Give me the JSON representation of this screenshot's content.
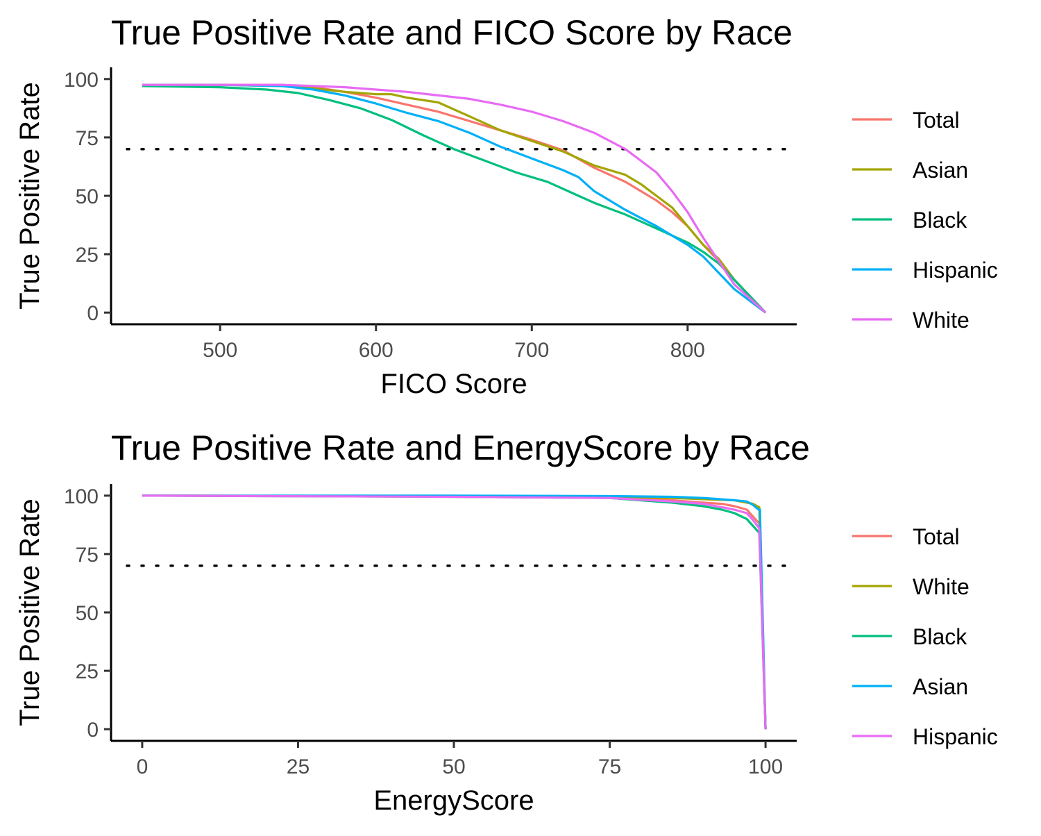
{
  "chart_data": [
    {
      "type": "line",
      "title": "True Positive Rate and FICO Score by Race",
      "xlabel": "FICO Score",
      "ylabel": "True Positive Rate",
      "xlim": [
        430,
        870
      ],
      "ylim": [
        -5,
        105
      ],
      "xticks": [
        500,
        600,
        700,
        800
      ],
      "yticks": [
        0,
        25,
        50,
        75,
        100
      ],
      "xtick_labels": [
        "500",
        "600",
        "700",
        "800"
      ],
      "ytick_labels": [
        "0",
        "25",
        "50",
        "75",
        "100"
      ],
      "reference_line": {
        "y": 70,
        "style": "dotted"
      },
      "legend": "right",
      "grid": false,
      "series": [
        {
          "name": "Total",
          "color": "#F8766D",
          "x": [
            450,
            500,
            540,
            560,
            580,
            600,
            620,
            640,
            660,
            680,
            700,
            720,
            740,
            760,
            780,
            790,
            800,
            810,
            820,
            830,
            840,
            850
          ],
          "y": [
            97.5,
            97.5,
            97.5,
            96.5,
            94.5,
            92,
            89,
            86,
            82,
            78,
            74,
            69.5,
            62,
            56,
            48,
            43,
            37,
            29,
            22,
            14,
            7,
            0
          ]
        },
        {
          "name": "Asian",
          "color": "#A3A500",
          "x": [
            450,
            500,
            540,
            560,
            580,
            600,
            610,
            620,
            640,
            660,
            680,
            700,
            720,
            740,
            760,
            770,
            780,
            790,
            800,
            810,
            820,
            830,
            840,
            850
          ],
          "y": [
            97.5,
            97.5,
            97,
            96,
            94.5,
            93.5,
            93.5,
            92,
            90,
            84,
            78,
            73.5,
            69,
            63,
            59,
            55,
            50,
            45,
            37,
            29,
            23,
            14,
            7,
            0
          ]
        },
        {
          "name": "Black",
          "color": "#00BF7D",
          "x": [
            450,
            500,
            530,
            550,
            570,
            590,
            610,
            630,
            650,
            670,
            690,
            710,
            730,
            740,
            760,
            780,
            800,
            810,
            820,
            830,
            840,
            850
          ],
          "y": [
            97,
            96.5,
            95.5,
            94,
            91,
            87.5,
            82.5,
            76,
            70,
            65,
            60,
            56,
            50,
            47,
            42,
            36,
            30,
            26,
            21,
            14,
            7,
            0
          ]
        },
        {
          "name": "Hispanic",
          "color": "#00B0F6",
          "x": [
            450,
            500,
            540,
            560,
            580,
            600,
            620,
            640,
            660,
            680,
            700,
            720,
            730,
            740,
            760,
            780,
            790,
            800,
            810,
            820,
            830,
            840,
            850
          ],
          "y": [
            97.5,
            97.5,
            97,
            95.5,
            93,
            89.5,
            85.5,
            82,
            77,
            71,
            66,
            61,
            58,
            52,
            44,
            37,
            33,
            29,
            24,
            17,
            10,
            5,
            0
          ]
        },
        {
          "name": "White",
          "color": "#E76BF3",
          "x": [
            450,
            500,
            540,
            560,
            580,
            600,
            620,
            640,
            660,
            680,
            700,
            720,
            740,
            760,
            770,
            780,
            790,
            800,
            810,
            820,
            830,
            840,
            850
          ],
          "y": [
            97.5,
            97.5,
            97.5,
            97,
            96.5,
            95.5,
            94.5,
            93,
            91.5,
            89,
            86,
            82,
            77,
            70,
            65,
            60,
            52,
            43,
            32,
            22,
            12,
            6,
            0
          ]
        }
      ]
    },
    {
      "type": "line",
      "title": "True Positive Rate and EnergyScore by Race",
      "xlabel": "EnergyScore",
      "ylabel": "True Positive Rate",
      "xlim": [
        -5,
        105
      ],
      "ylim": [
        -5,
        105
      ],
      "xticks": [
        0,
        25,
        50,
        75,
        100
      ],
      "yticks": [
        0,
        25,
        50,
        75,
        100
      ],
      "xtick_labels": [
        "0",
        "25",
        "50",
        "75",
        "100"
      ],
      "ytick_labels": [
        "0",
        "25",
        "50",
        "75",
        "100"
      ],
      "reference_line": {
        "y": 70,
        "style": "dotted"
      },
      "legend": "right",
      "grid": false,
      "series": [
        {
          "name": "Total",
          "color": "#F8766D",
          "x": [
            0,
            50,
            75,
            85,
            90,
            93,
            95,
            97,
            98,
            99,
            100
          ],
          "y": [
            100,
            99.7,
            99.2,
            98,
            97,
            96.5,
            95.5,
            94,
            91,
            88,
            0
          ]
        },
        {
          "name": "White",
          "color": "#A3A500",
          "x": [
            0,
            50,
            75,
            85,
            90,
            95,
            97,
            98,
            99,
            100
          ],
          "y": [
            100,
            99.8,
            99.5,
            99,
            98.5,
            98,
            97,
            96.5,
            95,
            0
          ]
        },
        {
          "name": "Black",
          "color": "#00BF7D",
          "x": [
            0,
            50,
            75,
            85,
            90,
            93,
            95,
            97,
            98,
            99,
            100
          ],
          "y": [
            100,
            99.5,
            99,
            97,
            95.5,
            94,
            92.5,
            90,
            87,
            84,
            0
          ]
        },
        {
          "name": "Asian",
          "color": "#00B0F6",
          "x": [
            0,
            50,
            75,
            85,
            90,
            95,
            97,
            98,
            98.9,
            99.1,
            100
          ],
          "y": [
            100,
            100,
            99.8,
            99.5,
            99,
            98,
            97.5,
            96,
            94,
            94,
            0
          ]
        },
        {
          "name": "Hispanic",
          "color": "#E76BF3",
          "x": [
            0,
            50,
            75,
            85,
            90,
            93,
            95,
            97,
            98,
            99,
            100
          ],
          "y": [
            100,
            99.5,
            99,
            97.5,
            96.5,
            95,
            94,
            92.5,
            89.5,
            86,
            0
          ]
        }
      ]
    }
  ]
}
